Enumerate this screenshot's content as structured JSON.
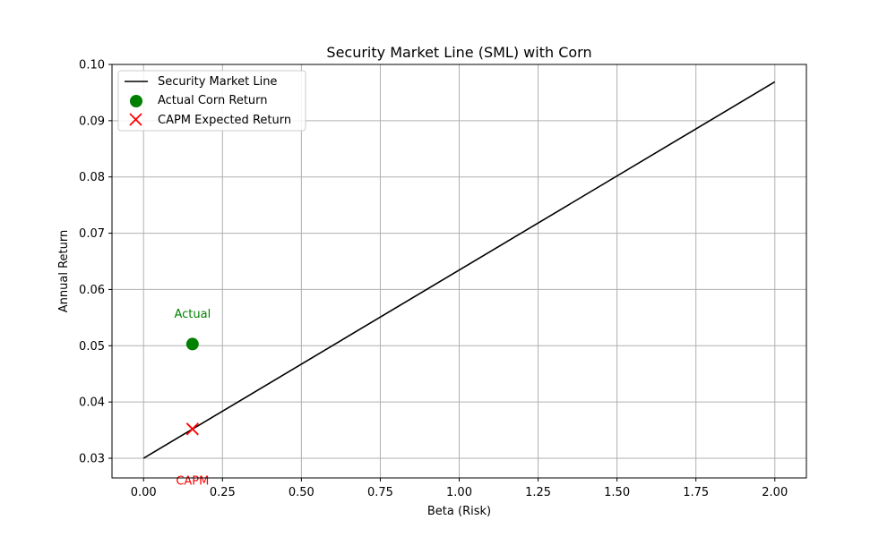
{
  "chart_data": {
    "type": "line",
    "title": "Security Market Line (SML) with Corn",
    "xlabel": "Beta (Risk)",
    "ylabel": "Annual Return",
    "xlim": [
      -0.1,
      2.1
    ],
    "ylim": [
      0.0265,
      0.1
    ],
    "grid": true,
    "legend_position": "top-left",
    "x_ticks": [
      0.0,
      0.25,
      0.5,
      0.75,
      1.0,
      1.25,
      1.5,
      1.75,
      2.0
    ],
    "x_tick_labels": [
      "0.00",
      "0.25",
      "0.50",
      "0.75",
      "1.00",
      "1.25",
      "1.50",
      "1.75",
      "2.00"
    ],
    "y_ticks": [
      0.03,
      0.04,
      0.05,
      0.06,
      0.07,
      0.08,
      0.09,
      0.1
    ],
    "y_tick_labels": [
      "0.03",
      "0.04",
      "0.05",
      "0.06",
      "0.07",
      "0.08",
      "0.09",
      "0.10"
    ],
    "series": [
      {
        "name": "Security Market Line",
        "kind": "line",
        "color": "#000000",
        "x": [
          0.0,
          2.0
        ],
        "y": [
          0.03,
          0.0969
        ]
      },
      {
        "name": "Actual Corn Return",
        "kind": "scatter",
        "marker": "circle",
        "color": "#008000",
        "x": [
          0.155
        ],
        "y": [
          0.0503
        ]
      },
      {
        "name": "CAPM Expected Return",
        "kind": "scatter",
        "marker": "x",
        "color": "#ff0000",
        "x": [
          0.155
        ],
        "y": [
          0.0352
        ]
      }
    ],
    "annotations": [
      {
        "text": "Actual",
        "x": 0.155,
        "y": 0.0558,
        "color": "#008000"
      },
      {
        "text": "CAPM",
        "x": 0.155,
        "y": 0.0261,
        "color": "#ff0000"
      }
    ]
  }
}
